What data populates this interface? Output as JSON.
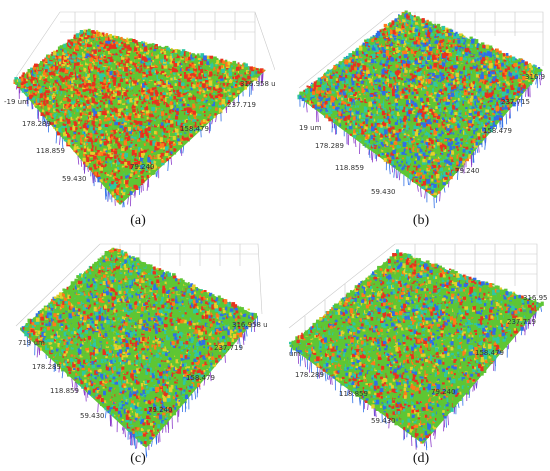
{
  "panels": [
    {
      "caption": "(a)",
      "ticks": [
        "-19 um",
        "178.289",
        "118.859",
        "59.430",
        "79.240",
        "158.479",
        "237.719",
        "316.958 u"
      ],
      "palette": [
        "#e8321e",
        "#ff7a1a",
        "#e6cf2a",
        "#5ec634",
        "#2ec7a3",
        "#2f6fe6"
      ],
      "weights": [
        0.27,
        0.1,
        0.12,
        0.38,
        0.1,
        0.03
      ]
    },
    {
      "caption": "(b)",
      "ticks": [
        "19 um",
        "178.289",
        "118.859",
        "59.430",
        "79.240",
        "158.479",
        "237.715",
        "316.9"
      ],
      "palette": [
        "#e8321e",
        "#ff7a1a",
        "#e6cf2a",
        "#5ec634",
        "#2ec7a3",
        "#2f6fe6"
      ],
      "weights": [
        0.16,
        0.08,
        0.08,
        0.36,
        0.16,
        0.16
      ]
    },
    {
      "caption": "(c)",
      "ticks": [
        "719 um",
        "178.289",
        "118.859",
        "59.430",
        "79.240",
        "158.479",
        "237.719",
        "316.958 u"
      ],
      "palette": [
        "#e8321e",
        "#ff7a1a",
        "#e6cf2a",
        "#5ec634",
        "#2ec7a3",
        "#2f6fe6"
      ],
      "weights": [
        0.12,
        0.08,
        0.08,
        0.47,
        0.13,
        0.12
      ]
    },
    {
      "caption": "(d)",
      "ticks": [
        "um",
        "178.289",
        "118.859",
        "59.430",
        "79.240",
        "158.479",
        "237.719",
        "316.95"
      ],
      "palette": [
        "#e8321e",
        "#ff7a1a",
        "#e6cf2a",
        "#5ec634",
        "#2ec7a3",
        "#2f6fe6"
      ],
      "weights": [
        0.12,
        0.08,
        0.08,
        0.5,
        0.12,
        0.1
      ]
    }
  ]
}
